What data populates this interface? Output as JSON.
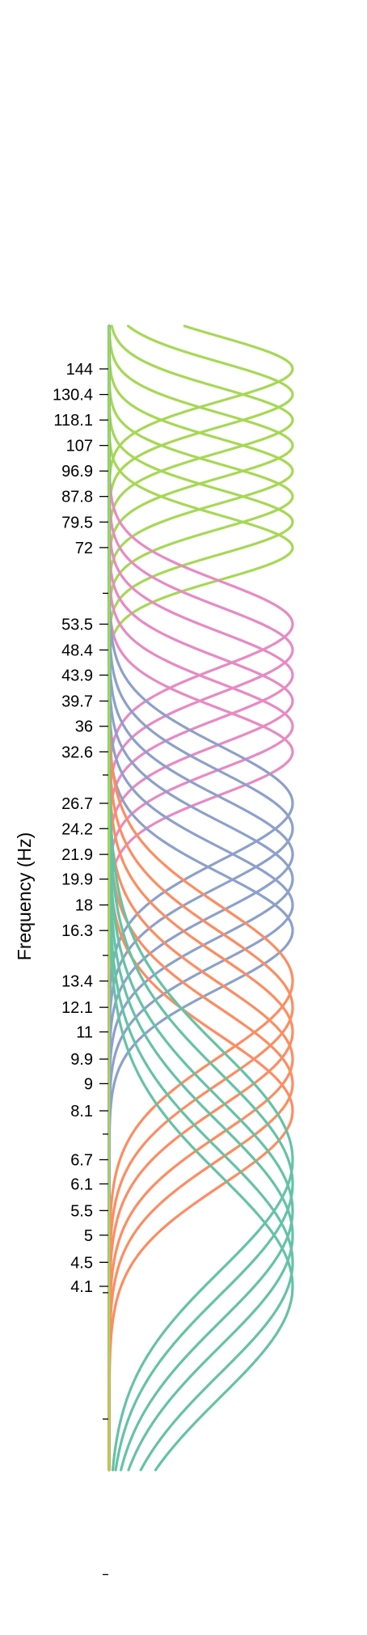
{
  "chart_data": {
    "type": "line",
    "title": "",
    "xlabel": "",
    "ylabel": "Frequency (Hz)",
    "y_scale": "log",
    "ylim": [
      1.3,
      160
    ],
    "colors": {
      "group1": "#66c2a5",
      "group2": "#fc8d62",
      "group3": "#8da0cb",
      "group4": "#e78ac3",
      "group5": "#a6d854"
    },
    "tick_labels": [
      {
        "value": 144,
        "label": "144"
      },
      {
        "value": 130.4,
        "label": "130.4"
      },
      {
        "value": 118.1,
        "label": "118.1"
      },
      {
        "value": 107,
        "label": "107"
      },
      {
        "value": 96.9,
        "label": "96.9"
      },
      {
        "value": 87.8,
        "label": "87.8"
      },
      {
        "value": 79.5,
        "label": "79.5"
      },
      {
        "value": 72,
        "label": "72"
      },
      {
        "value": 53.5,
        "label": "53.5"
      },
      {
        "value": 48.4,
        "label": "48.4"
      },
      {
        "value": 43.9,
        "label": "43.9"
      },
      {
        "value": 39.7,
        "label": "39.7"
      },
      {
        "value": 36,
        "label": "36"
      },
      {
        "value": 32.6,
        "label": "32.6"
      },
      {
        "value": 26.7,
        "label": "26.7"
      },
      {
        "value": 24.2,
        "label": "24.2"
      },
      {
        "value": 21.9,
        "label": "21.9"
      },
      {
        "value": 19.9,
        "label": "19.9"
      },
      {
        "value": 18,
        "label": "18"
      },
      {
        "value": 16.3,
        "label": "16.3"
      },
      {
        "value": 13.4,
        "label": "13.4"
      },
      {
        "value": 12.1,
        "label": "12.1"
      },
      {
        "value": 11,
        "label": "11"
      },
      {
        "value": 9.9,
        "label": "9.9"
      },
      {
        "value": 9,
        "label": "9"
      },
      {
        "value": 8.1,
        "label": "8.1"
      },
      {
        "value": 6.7,
        "label": "6.7"
      },
      {
        "value": 6.1,
        "label": "6.1"
      },
      {
        "value": 5.5,
        "label": "5.5"
      },
      {
        "value": 5,
        "label": "5"
      },
      {
        "value": 4.5,
        "label": "4.5"
      },
      {
        "value": 4.1,
        "label": "4.1"
      }
    ],
    "unlabeled_ticks": [
      60.3,
      29.8,
      14.8,
      7.4,
      4.0,
      2.45,
      1.34
    ],
    "series": [
      {
        "group": "group5",
        "center": 144,
        "sigma_oct": 0.18
      },
      {
        "group": "group5",
        "center": 130.4,
        "sigma_oct": 0.18
      },
      {
        "group": "group5",
        "center": 118.1,
        "sigma_oct": 0.18
      },
      {
        "group": "group5",
        "center": 107,
        "sigma_oct": 0.18
      },
      {
        "group": "group5",
        "center": 96.9,
        "sigma_oct": 0.18
      },
      {
        "group": "group5",
        "center": 87.8,
        "sigma_oct": 0.18
      },
      {
        "group": "group5",
        "center": 79.5,
        "sigma_oct": 0.18
      },
      {
        "group": "group5",
        "center": 72,
        "sigma_oct": 0.18
      },
      {
        "group": "group4",
        "center": 53.5,
        "sigma_oct": 0.24
      },
      {
        "group": "group4",
        "center": 48.4,
        "sigma_oct": 0.24
      },
      {
        "group": "group4",
        "center": 43.9,
        "sigma_oct": 0.24
      },
      {
        "group": "group4",
        "center": 39.7,
        "sigma_oct": 0.24
      },
      {
        "group": "group4",
        "center": 36,
        "sigma_oct": 0.24
      },
      {
        "group": "group4",
        "center": 32.6,
        "sigma_oct": 0.24
      },
      {
        "group": "group3",
        "center": 26.7,
        "sigma_oct": 0.32
      },
      {
        "group": "group3",
        "center": 24.2,
        "sigma_oct": 0.32
      },
      {
        "group": "group3",
        "center": 21.9,
        "sigma_oct": 0.32
      },
      {
        "group": "group3",
        "center": 19.9,
        "sigma_oct": 0.32
      },
      {
        "group": "group3",
        "center": 18,
        "sigma_oct": 0.32
      },
      {
        "group": "group3",
        "center": 16.3,
        "sigma_oct": 0.32
      },
      {
        "group": "group2",
        "center": 13.4,
        "sigma_oct": 0.42
      },
      {
        "group": "group2",
        "center": 12.1,
        "sigma_oct": 0.42
      },
      {
        "group": "group2",
        "center": 11,
        "sigma_oct": 0.42
      },
      {
        "group": "group2",
        "center": 9.9,
        "sigma_oct": 0.42
      },
      {
        "group": "group2",
        "center": 9,
        "sigma_oct": 0.42
      },
      {
        "group": "group2",
        "center": 8.1,
        "sigma_oct": 0.42
      },
      {
        "group": "group1",
        "center": 6.7,
        "sigma_oct": 0.62
      },
      {
        "group": "group1",
        "center": 6.1,
        "sigma_oct": 0.62
      },
      {
        "group": "group1",
        "center": 5.5,
        "sigma_oct": 0.62
      },
      {
        "group": "group1",
        "center": 5,
        "sigma_oct": 0.62
      },
      {
        "group": "group1",
        "center": 4.5,
        "sigma_oct": 0.62
      },
      {
        "group": "group1",
        "center": 4.1,
        "sigma_oct": 0.62
      }
    ]
  }
}
